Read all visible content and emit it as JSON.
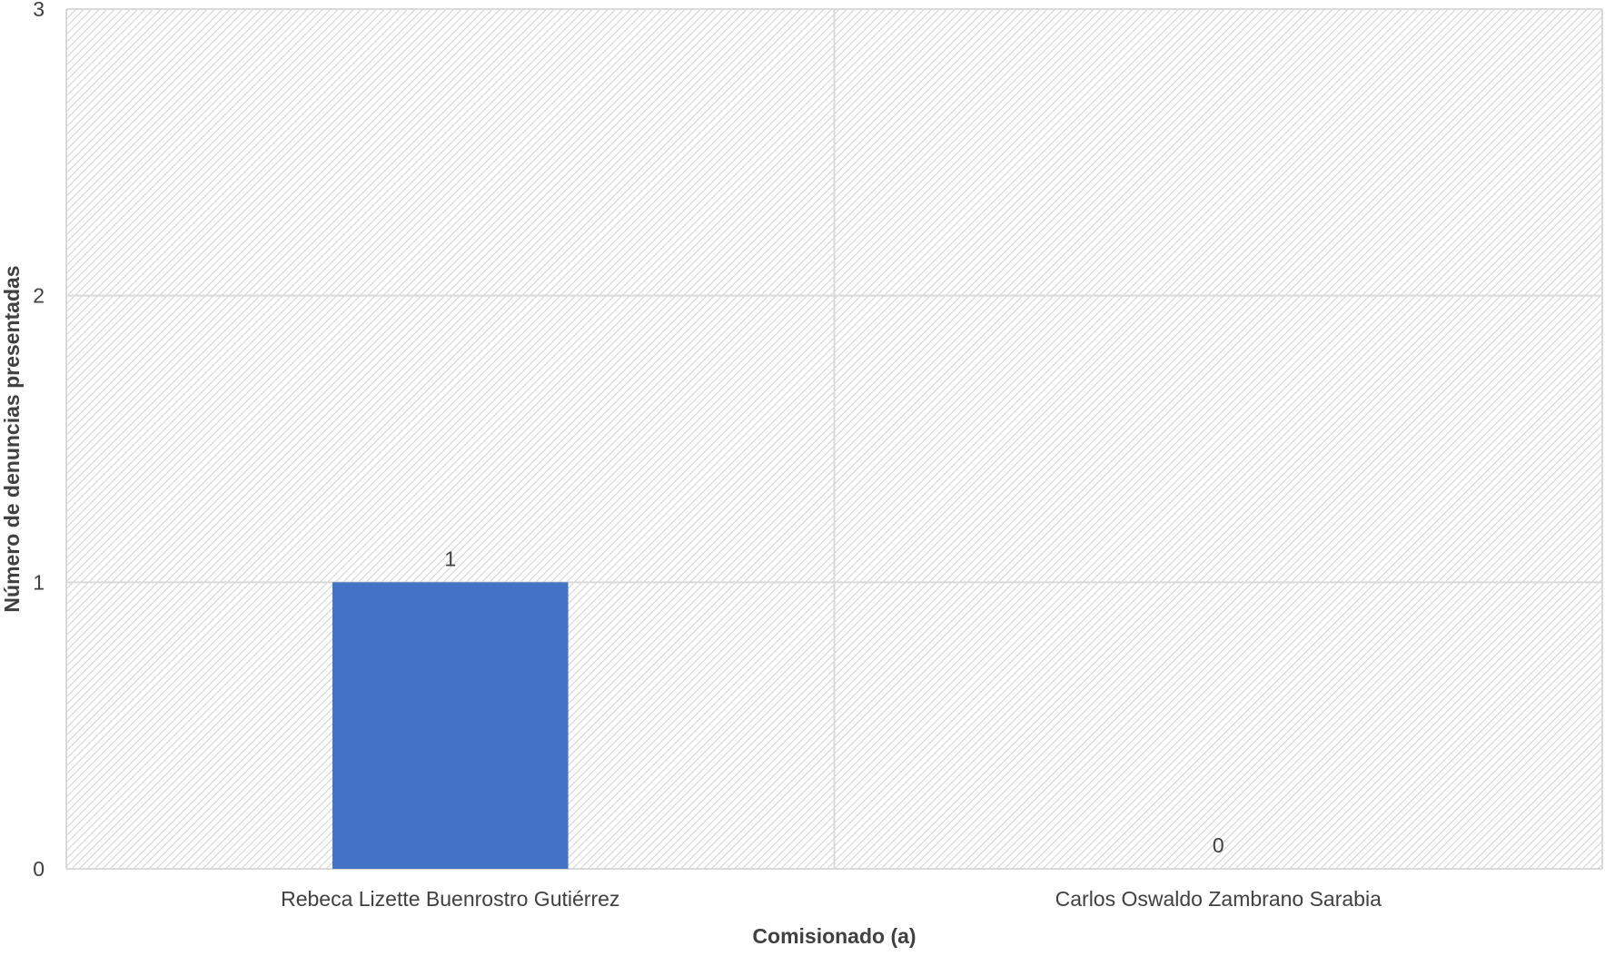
{
  "chart_data": {
    "type": "bar",
    "categories": [
      "Rebeca Lizette Buenrostro Gutiérrez",
      "Carlos Oswaldo Zambrano Sarabia"
    ],
    "values": [
      1,
      0
    ],
    "data_labels": [
      "1",
      "0"
    ],
    "xlabel": "Comisionado (a)",
    "ylabel": "Número de denuncias presentadas",
    "ylim": [
      0,
      3
    ],
    "yticks": [
      0,
      1,
      2,
      3
    ],
    "grid": true,
    "legend": "none",
    "bar_color": "#4472C4",
    "plot_background": "hatched light gray"
  }
}
